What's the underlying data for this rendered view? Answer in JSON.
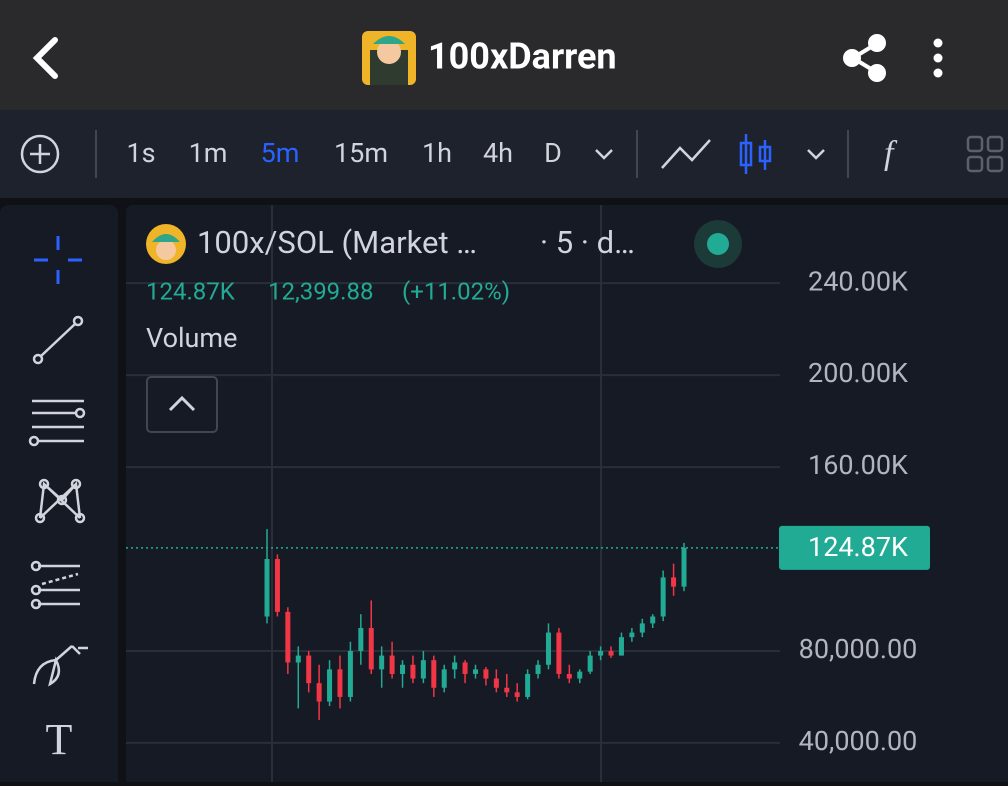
{
  "header": {
    "title": "100xDarren"
  },
  "toolbar": {
    "intervals": [
      "1s",
      "1m",
      "5m",
      "15m",
      "1h",
      "4h",
      "D"
    ],
    "active_index": 2
  },
  "legend": {
    "symbol": "100x/SOL (Market …",
    "details": "· 5 · d…",
    "change": "12,399.88",
    "change_pct": "(+11.02%)",
    "indicator": "Volume"
  },
  "chart_data": {
    "type": "candlestick",
    "open": [
      95000,
      120000,
      97000,
      75000,
      78000,
      66000,
      58000,
      72000,
      60000,
      80000,
      90000,
      72000,
      78000,
      70000,
      74000,
      68000,
      76000,
      64000,
      72000,
      75000,
      70000,
      72000,
      68000,
      64000,
      62000,
      60000,
      70000,
      74000,
      88000,
      70000,
      68000,
      71000,
      78000,
      80000,
      78000,
      86000,
      88000,
      92000,
      95000,
      112000,
      108000
    ],
    "high": [
      133000,
      122000,
      99000,
      82000,
      80000,
      74000,
      76000,
      78000,
      84000,
      96000,
      102000,
      82000,
      84000,
      76000,
      78000,
      80000,
      78000,
      74000,
      78000,
      76000,
      74000,
      73000,
      72000,
      70000,
      66000,
      72000,
      76000,
      92000,
      90000,
      74000,
      72000,
      80000,
      82000,
      82000,
      88000,
      90000,
      94000,
      96000,
      115000,
      118000,
      127000
    ],
    "low": [
      92000,
      95000,
      70000,
      55000,
      62000,
      50000,
      56000,
      55000,
      58000,
      74000,
      70000,
      64000,
      68000,
      64000,
      66000,
      66000,
      60000,
      62000,
      68000,
      66000,
      68000,
      65000,
      62000,
      60000,
      58000,
      59000,
      68000,
      72000,
      68000,
      66000,
      66000,
      70000,
      76000,
      77000,
      78000,
      84000,
      86000,
      90000,
      93000,
      104000,
      106000
    ],
    "close": [
      120000,
      97000,
      75000,
      78000,
      66000,
      58000,
      72000,
      60000,
      80000,
      90000,
      72000,
      78000,
      70000,
      74000,
      68000,
      76000,
      64000,
      72000,
      75000,
      70000,
      72000,
      68000,
      64000,
      62000,
      60000,
      70000,
      74000,
      88000,
      70000,
      68000,
      71000,
      78000,
      80000,
      78000,
      86000,
      88000,
      92000,
      95000,
      112000,
      108000,
      124870
    ],
    "up_color": "#22ab94",
    "down_color": "#f23645",
    "last_price": {
      "value": 124870,
      "label": "124.87K"
    },
    "ylim": [
      23000,
      274000
    ],
    "yticks": [
      {
        "value": 40000,
        "label": "40,000.00"
      },
      {
        "value": 80000,
        "label": "80,000.00"
      },
      {
        "value": 160000,
        "label": "160.00K"
      },
      {
        "value": 200000,
        "label": "200.00K"
      },
      {
        "value": 240000,
        "label": "240.00K"
      }
    ]
  }
}
